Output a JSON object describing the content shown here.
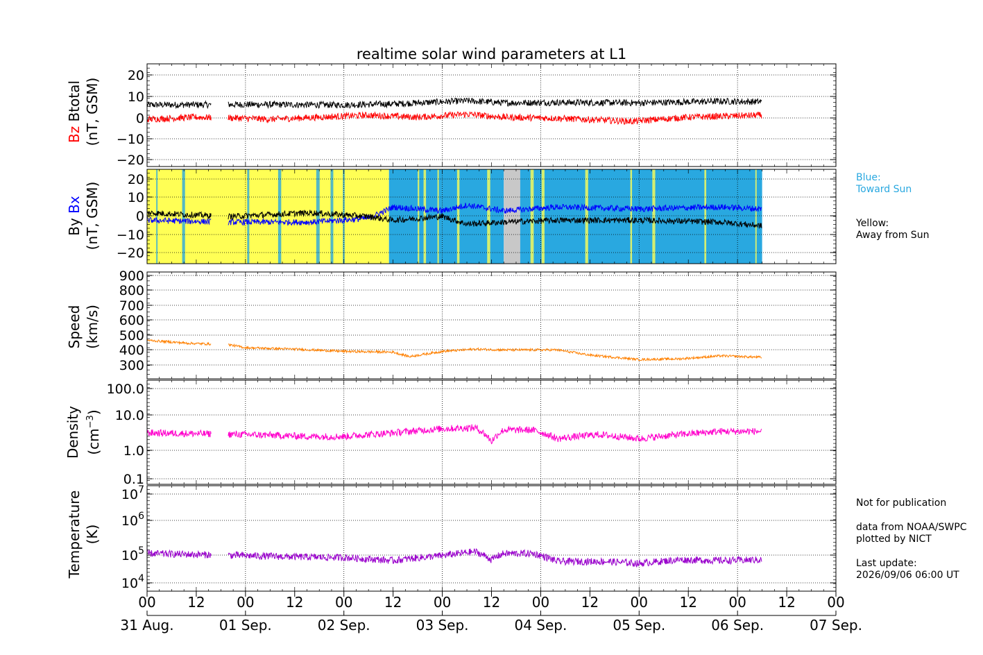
{
  "title": "realtime solar wind parameters at L1",
  "legend_imf": {
    "toward": "Blue:\nToward Sun",
    "away": "Yellow:\nAway from Sun",
    "toward_color": "#29a8e0",
    "away_color": "#ffff55",
    "gap_color": "#c8c8c8"
  },
  "notes": {
    "publication": "Not for publication",
    "source": "data from NOAA/SWPC\nplotted by NICT",
    "update": "Last update:\n2026/09/06 06:00 UT"
  },
  "panels": {
    "mag": {
      "label_a": "Bz",
      "label_b": "Btotal",
      "unit": "(nT, GSM)"
    },
    "field": {
      "label_a": "By",
      "label_b": "Bx",
      "unit": "(nT, GSM)"
    },
    "speed": {
      "label": "Speed",
      "unit": "(km/s)"
    },
    "density": {
      "label": "Density",
      "unit": "(cm",
      "unit_exp": "−3",
      "unit_end": ")"
    },
    "temp": {
      "label": "Temperature",
      "unit": "(K)"
    }
  },
  "chart_data": {
    "type": "line",
    "x_axis": {
      "range_hours": [
        0,
        168
      ],
      "hour_ticks": [
        "00",
        "12",
        "00",
        "12",
        "00",
        "12",
        "00",
        "12",
        "00",
        "12",
        "00",
        "12",
        "00",
        "12",
        "00"
      ],
      "day_labels": [
        "31 Aug.",
        "01 Sep.",
        "02 Sep.",
        "03 Sep.",
        "04 Sep.",
        "05 Sep.",
        "06 Sep.",
        "07 Sep."
      ],
      "data_gap": [
        15.7,
        19.7
      ],
      "data_end": 150
    },
    "grid": true,
    "panels": [
      {
        "name": "Btotal / Bz",
        "ylim": [
          -25,
          25
        ],
        "yticks": [
          "20",
          "10",
          "0",
          "−10",
          "−20"
        ],
        "series": [
          {
            "name": "Btotal",
            "color": "#000000",
            "keypoints": [
              [
                0,
                5
              ],
              [
                24,
                5.2
              ],
              [
                48,
                5
              ],
              [
                60,
                5.5
              ],
              [
                72,
                6.5
              ],
              [
                78,
                7
              ],
              [
                87,
                6
              ],
              [
                100,
                6.2
              ],
              [
                120,
                6
              ],
              [
                140,
                6.8
              ],
              [
                150,
                6.5
              ]
            ]
          },
          {
            "name": "Bz",
            "color": "#ff0000",
            "keypoints": [
              [
                0,
                -2
              ],
              [
                12,
                -1
              ],
              [
                24,
                -1.5
              ],
              [
                30,
                -2
              ],
              [
                42,
                -1
              ],
              [
                54,
                0
              ],
              [
                66,
                -1
              ],
              [
                78,
                0.5
              ],
              [
                87,
                -1
              ],
              [
                100,
                -1.5
              ],
              [
                118,
                -3
              ],
              [
                132,
                -1
              ],
              [
                150,
                0
              ]
            ]
          }
        ]
      },
      {
        "name": "By / Bx",
        "ylim": [
          -25,
          25
        ],
        "yticks": [
          "20",
          "10",
          "0",
          "−10",
          "−20"
        ],
        "series": [
          {
            "name": "Bx",
            "color": "#0000ff",
            "keypoints": [
              [
                0,
                -2
              ],
              [
                20,
                -3
              ],
              [
                40,
                -3
              ],
              [
                54,
                -1
              ],
              [
                60,
                5
              ],
              [
                72,
                3
              ],
              [
                78,
                6
              ],
              [
                87,
                3
              ],
              [
                100,
                5
              ],
              [
                120,
                4
              ],
              [
                140,
                5
              ],
              [
                150,
                4
              ]
            ]
          },
          {
            "name": "By",
            "color": "#000000",
            "keypoints": [
              [
                0,
                2
              ],
              [
                20,
                0
              ],
              [
                40,
                2
              ],
              [
                54,
                0
              ],
              [
                60,
                -2
              ],
              [
                72,
                0
              ],
              [
                78,
                -4
              ],
              [
                87,
                -3
              ],
              [
                100,
                -2
              ],
              [
                120,
                -2
              ],
              [
                140,
                -3
              ],
              [
                150,
                -5
              ]
            ]
          }
        ]
      },
      {
        "name": "Speed",
        "ylim": [
          200,
          920
        ],
        "yticks": [
          "900",
          "800",
          "700",
          "600",
          "500",
          "400",
          "300"
        ],
        "series": [
          {
            "name": "Speed",
            "color": "#ff8000",
            "keypoints": [
              [
                0,
                460
              ],
              [
                10,
                440
              ],
              [
                20,
                430
              ],
              [
                24,
                410
              ],
              [
                36,
                400
              ],
              [
                48,
                385
              ],
              [
                60,
                380
              ],
              [
                64,
                350
              ],
              [
                72,
                385
              ],
              [
                80,
                400
              ],
              [
                87,
                395
              ],
              [
                100,
                395
              ],
              [
                108,
                360
              ],
              [
                120,
                330
              ],
              [
                130,
                335
              ],
              [
                140,
                355
              ],
              [
                150,
                345
              ]
            ]
          }
        ]
      },
      {
        "name": "Density",
        "scale": "log",
        "ylim": [
          0.07,
          250
        ],
        "yticks": [
          "100.0",
          "10.0",
          "1.0",
          "0.1"
        ],
        "series": [
          {
            "name": "Density",
            "color": "#ff00cc",
            "keypoints": [
              [
                0,
                4
              ],
              [
                24,
                3.5
              ],
              [
                40,
                3
              ],
              [
                48,
                3
              ],
              [
                60,
                4
              ],
              [
                72,
                5.5
              ],
              [
                80,
                6
              ],
              [
                84,
                2
              ],
              [
                87,
                5
              ],
              [
                94,
                5
              ],
              [
                100,
                2.5
              ],
              [
                110,
                3.5
              ],
              [
                120,
                2.5
              ],
              [
                130,
                3.5
              ],
              [
                140,
                4.5
              ],
              [
                150,
                4.5
              ]
            ]
          }
        ]
      },
      {
        "name": "Temperature",
        "scale": "log",
        "ylim": [
          7000,
          25000000
        ],
        "yticks": [
          "10^7",
          "10^6",
          "10^5",
          "10^4"
        ],
        "series": [
          {
            "name": "Temperature",
            "color": "#9900cc",
            "keypoints": [
              [
                0,
                130000
              ],
              [
                24,
                110000
              ],
              [
                36,
                100000
              ],
              [
                48,
                95000
              ],
              [
                60,
                75000
              ],
              [
                72,
                110000
              ],
              [
                80,
                150000
              ],
              [
                84,
                80000
              ],
              [
                87,
                130000
              ],
              [
                94,
                130000
              ],
              [
                100,
                70000
              ],
              [
                112,
                70000
              ],
              [
                120,
                60000
              ],
              [
                130,
                80000
              ],
              [
                140,
                75000
              ],
              [
                150,
                80000
              ]
            ]
          }
        ]
      }
    ],
    "imf_sector_bands": [
      [
        0,
        59,
        "away"
      ],
      [
        59,
        72,
        "toward"
      ],
      [
        72,
        87,
        "toward"
      ],
      [
        87,
        91,
        "gap"
      ],
      [
        91,
        150,
        "toward"
      ]
    ]
  }
}
